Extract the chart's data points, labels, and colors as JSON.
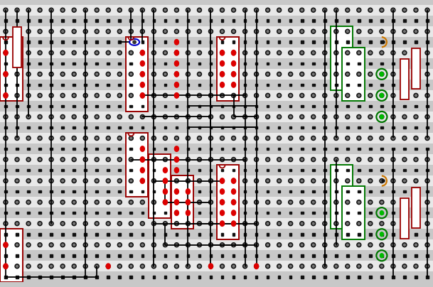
{
  "bg_light": "#e8e8e8",
  "bg_dark": "#c8c8c8",
  "dot_color": "#111111",
  "dot_small_color": "#888888",
  "red_led": "#dd0000",
  "green_led": "#00bb00",
  "wire_black": "#000000",
  "wire_blue": "#0000cc",
  "box_red": "#990000",
  "box_green": "#007700",
  "box_orange": "#cc7700",
  "white_fill": "#ffffff",
  "cols": 38,
  "rows": 26,
  "cw": 16,
  "ch": 15
}
